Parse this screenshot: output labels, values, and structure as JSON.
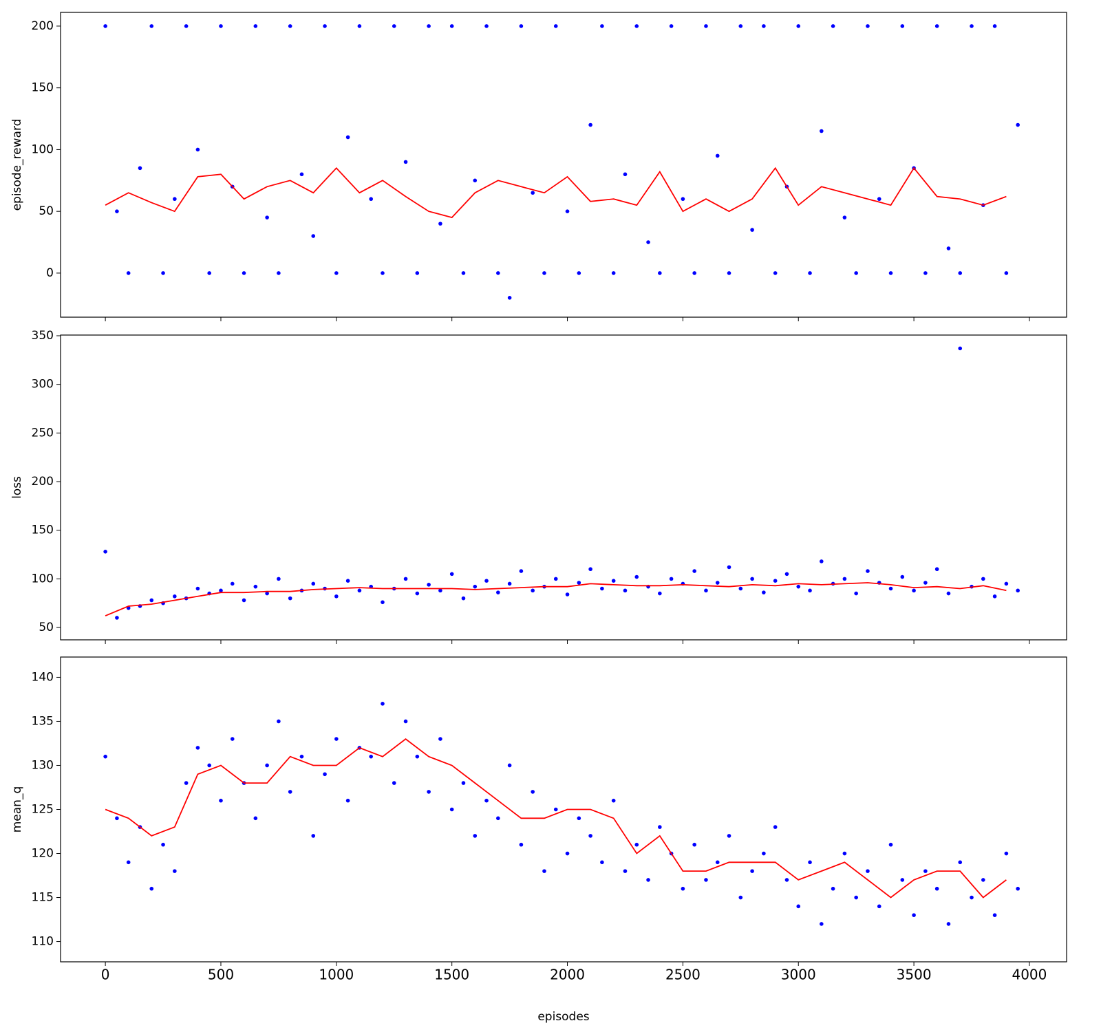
{
  "chart_data": {
    "type": "scatter",
    "xlabel": "episodes",
    "xlim": [
      -194,
      4161
    ],
    "xticks": [
      0,
      500,
      1000,
      1500,
      2000,
      2500,
      3000,
      3500,
      4000
    ],
    "panels": [
      {
        "ylabel": "episode_reward",
        "ylim": [
          -35.7,
          211.1
        ],
        "yticks": [
          0,
          50,
          100,
          150,
          200
        ],
        "series": [
          {
            "marker": "dot",
            "color": "#0000ff",
            "x": [
              0,
              50,
              100,
              150,
              200,
              250,
              300,
              350,
              400,
              450,
              500,
              550,
              600,
              650,
              700,
              750,
              800,
              850,
              900,
              950,
              1000,
              1050,
              1100,
              1150,
              1200,
              1250,
              1300,
              1350,
              1400,
              1450,
              1500,
              1550,
              1600,
              1650,
              1700,
              1750,
              1800,
              1850,
              1900,
              1950,
              2000,
              2050,
              2100,
              2150,
              2200,
              2250,
              2300,
              2350,
              2400,
              2450,
              2500,
              2550,
              2600,
              2650,
              2700,
              2750,
              2800,
              2850,
              2900,
              2950,
              3000,
              3050,
              3100,
              3150,
              3200,
              3250,
              3300,
              3350,
              3400,
              3450,
              3500,
              3550,
              3600,
              3650,
              3700,
              3750,
              3800,
              3850,
              3900,
              3950
            ],
            "values": [
              200,
              50,
              0,
              85,
              200,
              0,
              60,
              200,
              100,
              0,
              200,
              70,
              0,
              200,
              45,
              0,
              200,
              80,
              30,
              200,
              0,
              110,
              200,
              60,
              0,
              200,
              90,
              0,
              200,
              40,
              200,
              0,
              75,
              200,
              0,
              -20,
              200,
              65,
              0,
              200,
              50,
              0,
              120,
              200,
              0,
              80,
              200,
              25,
              0,
              200,
              60,
              0,
              200,
              95,
              0,
              200,
              35,
              200,
              0,
              70,
              200,
              0,
              115,
              200,
              45,
              0,
              200,
              60,
              0,
              200,
              85,
              0,
              200,
              20,
              0,
              200,
              55,
              200,
              0,
              120
            ]
          },
          {
            "marker": "line",
            "color": "#ff0000",
            "x": [
              0,
              100,
              200,
              300,
              400,
              500,
              600,
              700,
              800,
              900,
              1000,
              1100,
              1200,
              1300,
              1400,
              1500,
              1600,
              1700,
              1800,
              1900,
              2000,
              2100,
              2200,
              2300,
              2400,
              2500,
              2600,
              2700,
              2800,
              2900,
              3000,
              3100,
              3200,
              3300,
              3400,
              3500,
              3600,
              3700,
              3800,
              3900
            ],
            "values": [
              55,
              65,
              57,
              50,
              78,
              80,
              60,
              70,
              75,
              65,
              85,
              65,
              75,
              62,
              50,
              45,
              65,
              75,
              70,
              65,
              78,
              58,
              60,
              55,
              82,
              50,
              60,
              50,
              60,
              85,
              55,
              70,
              65,
              60,
              55,
              85,
              62,
              60,
              55,
              62
            ]
          }
        ]
      },
      {
        "ylabel": "loss",
        "ylim": [
          37.3,
          350.7
        ],
        "yticks": [
          50,
          100,
          150,
          200,
          250,
          300,
          350
        ],
        "series": [
          {
            "marker": "dot",
            "color": "#0000ff",
            "x": [
              0,
              50,
              100,
              150,
              200,
              250,
              300,
              350,
              400,
              450,
              500,
              550,
              600,
              650,
              700,
              750,
              800,
              850,
              900,
              950,
              1000,
              1050,
              1100,
              1150,
              1200,
              1250,
              1300,
              1350,
              1400,
              1450,
              1500,
              1550,
              1600,
              1650,
              1700,
              1750,
              1800,
              1850,
              1900,
              1950,
              2000,
              2050,
              2100,
              2150,
              2200,
              2250,
              2300,
              2350,
              2400,
              2450,
              2500,
              2550,
              2600,
              2650,
              2700,
              2750,
              2800,
              2850,
              2900,
              2950,
              3000,
              3050,
              3100,
              3150,
              3200,
              3250,
              3300,
              3350,
              3400,
              3450,
              3500,
              3550,
              3600,
              3650,
              3700,
              3750,
              3800,
              3850,
              3900,
              3950
            ],
            "values": [
              128,
              60,
              70,
              72,
              78,
              75,
              82,
              80,
              90,
              85,
              88,
              95,
              78,
              92,
              85,
              100,
              80,
              88,
              95,
              90,
              82,
              98,
              88,
              92,
              76,
              90,
              100,
              85,
              94,
              88,
              105,
              80,
              92,
              98,
              86,
              95,
              108,
              88,
              92,
              100,
              84,
              96,
              110,
              90,
              98,
              88,
              102,
              92,
              85,
              100,
              95,
              108,
              88,
              96,
              112,
              90,
              100,
              86,
              98,
              105,
              92,
              88,
              118,
              95,
              100,
              85,
              108,
              96,
              90,
              102,
              88,
              96,
              110,
              85,
              337,
              92,
              100,
              82,
              95,
              88
            ]
          },
          {
            "marker": "line",
            "color": "#ff0000",
            "x": [
              0,
              100,
              200,
              300,
              400,
              500,
              600,
              700,
              800,
              900,
              1000,
              1100,
              1200,
              1300,
              1400,
              1500,
              1600,
              1700,
              1800,
              1900,
              2000,
              2100,
              2200,
              2300,
              2400,
              2500,
              2600,
              2700,
              2800,
              2900,
              3000,
              3100,
              3200,
              3300,
              3400,
              3500,
              3600,
              3700,
              3800,
              3900
            ],
            "values": [
              62,
              72,
              74,
              78,
              82,
              86,
              86,
              87,
              87,
              89,
              90,
              91,
              90,
              90,
              90,
              90,
              89,
              90,
              91,
              92,
              92,
              95,
              94,
              93,
              93,
              94,
              93,
              92,
              94,
              93,
              95,
              94,
              95,
              96,
              94,
              91,
              92,
              90,
              93,
              88
            ]
          }
        ]
      },
      {
        "ylabel": "mean_q",
        "ylim": [
          107.7,
          142.3
        ],
        "yticks": [
          110,
          115,
          120,
          125,
          130,
          135,
          140
        ],
        "series": [
          {
            "marker": "dot",
            "color": "#0000ff",
            "x": [
              0,
              50,
              100,
              150,
              200,
              250,
              300,
              350,
              400,
              450,
              500,
              550,
              600,
              650,
              700,
              750,
              800,
              850,
              900,
              950,
              1000,
              1050,
              1100,
              1150,
              1200,
              1250,
              1300,
              1350,
              1400,
              1450,
              1500,
              1550,
              1600,
              1650,
              1700,
              1750,
              1800,
              1850,
              1900,
              1950,
              2000,
              2050,
              2100,
              2150,
              2200,
              2250,
              2300,
              2350,
              2400,
              2450,
              2500,
              2550,
              2600,
              2650,
              2700,
              2750,
              2800,
              2850,
              2900,
              2950,
              3000,
              3050,
              3100,
              3150,
              3200,
              3250,
              3300,
              3350,
              3400,
              3450,
              3500,
              3550,
              3600,
              3650,
              3700,
              3750,
              3800,
              3850,
              3900,
              3950
            ],
            "values": [
              131,
              124,
              119,
              123,
              116,
              121,
              118,
              128,
              132,
              130,
              126,
              133,
              128,
              124,
              130,
              135,
              127,
              131,
              122,
              129,
              133,
              126,
              132,
              131,
              137,
              128,
              135,
              131,
              127,
              133,
              125,
              128,
              122,
              126,
              124,
              130,
              121,
              127,
              118,
              125,
              120,
              124,
              122,
              119,
              126,
              118,
              121,
              117,
              123,
              120,
              116,
              121,
              117,
              119,
              122,
              115,
              118,
              120,
              123,
              117,
              114,
              119,
              112,
              116,
              120,
              115,
              118,
              114,
              121,
              117,
              113,
              118,
              116,
              112,
              119,
              115,
              117,
              113,
              120,
              116
            ]
          },
          {
            "marker": "line",
            "color": "#ff0000",
            "x": [
              0,
              100,
              200,
              300,
              400,
              500,
              600,
              700,
              800,
              900,
              1000,
              1100,
              1200,
              1300,
              1400,
              1500,
              1600,
              1700,
              1800,
              1900,
              2000,
              2100,
              2200,
              2300,
              2400,
              2500,
              2600,
              2700,
              2800,
              2900,
              3000,
              3100,
              3200,
              3300,
              3400,
              3500,
              3600,
              3700,
              3800,
              3900
            ],
            "values": [
              125,
              124,
              122,
              123,
              129,
              130,
              128,
              128,
              131,
              130,
              130,
              132,
              131,
              133,
              131,
              130,
              128,
              126,
              124,
              124,
              125,
              125,
              124,
              120,
              122,
              118,
              118,
              119,
              119,
              119,
              117,
              118,
              119,
              117,
              115,
              117,
              118,
              118,
              115,
              117
            ]
          }
        ]
      }
    ]
  }
}
